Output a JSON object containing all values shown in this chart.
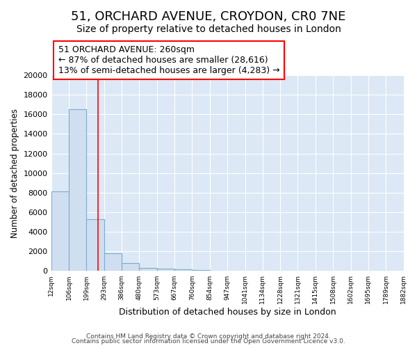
{
  "title1": "51, ORCHARD AVENUE, CROYDON, CR0 7NE",
  "title2": "Size of property relative to detached houses in London",
  "xlabel": "Distribution of detached houses by size in London",
  "ylabel": "Number of detached properties",
  "footer1": "Contains HM Land Registry data © Crown copyright and database right 2024.",
  "footer2": "Contains public sector information licensed under the Open Government Licence v3.0.",
  "annotation_line1": "51 ORCHARD AVENUE: 260sqm",
  "annotation_line2": "← 87% of detached houses are smaller (28,616)",
  "annotation_line3": "13% of semi-detached houses are larger (4,283) →",
  "bin_edges": [
    12,
    106,
    199,
    293,
    386,
    480,
    573,
    667,
    760,
    854,
    947,
    1041,
    1134,
    1228,
    1321,
    1415,
    1508,
    1602,
    1695,
    1789,
    1882
  ],
  "bar_heights": [
    8100,
    16500,
    5300,
    1800,
    800,
    300,
    220,
    150,
    130,
    0,
    0,
    0,
    0,
    0,
    0,
    0,
    0,
    0,
    0,
    0
  ],
  "bar_color": "#d0dff0",
  "bar_edge_color": "#7aaad0",
  "red_line_x": 260,
  "ylim": [
    0,
    20000
  ],
  "yticks": [
    0,
    2000,
    4000,
    6000,
    8000,
    10000,
    12000,
    14000,
    16000,
    18000,
    20000
  ],
  "fig_bg_color": "#ffffff",
  "plot_bg_color": "#dce8f5",
  "grid_color": "#ffffff",
  "title_fontsize": 13,
  "subtitle_fontsize": 10,
  "annotation_fontsize": 9
}
